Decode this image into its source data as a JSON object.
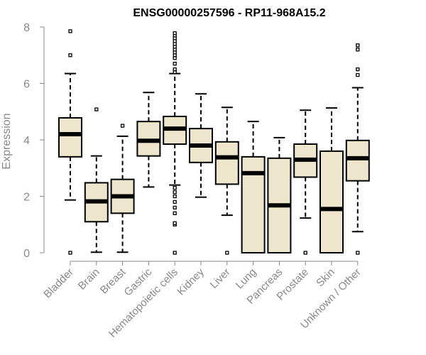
{
  "chart_data": {
    "type": "boxplot",
    "title": "ENSG00000257596 - RP11-968A15.2",
    "xlabel": "",
    "ylabel": "Expression",
    "ylim": [
      0,
      8
    ],
    "yticks": [
      0,
      2,
      4,
      6,
      8
    ],
    "box_fill": "#ede6cd",
    "axis_color": "#888888",
    "categories": [
      "Bladder",
      "Brain",
      "Breast",
      "Gastric",
      "Hematopoietic cells",
      "Kidney",
      "Liver",
      "Lung",
      "Pancreas",
      "Prostate",
      "Skin",
      "Unknown / Other"
    ],
    "boxes": [
      {
        "q1": 3.4,
        "median": 4.2,
        "q3": 4.78,
        "whisker_low": 1.87,
        "whisker_high": 6.35,
        "outliers": [
          0,
          7.0,
          7.85
        ]
      },
      {
        "q1": 1.1,
        "median": 1.82,
        "q3": 2.48,
        "whisker_low": 0.02,
        "whisker_high": 3.43,
        "outliers": [
          5.08
        ]
      },
      {
        "q1": 1.4,
        "median": 2.0,
        "q3": 2.6,
        "whisker_low": 0.02,
        "whisker_high": 4.13,
        "outliers": [
          4.5
        ]
      },
      {
        "q1": 3.43,
        "median": 3.97,
        "q3": 4.65,
        "whisker_low": 2.33,
        "whisker_high": 5.68,
        "outliers": []
      },
      {
        "q1": 3.85,
        "median": 4.4,
        "q3": 4.83,
        "whisker_low": 2.4,
        "whisker_high": 6.35,
        "outliers": [
          0,
          1.0,
          1.05,
          1.4,
          1.6,
          1.8,
          2.0,
          2.15,
          2.3,
          6.4,
          6.5,
          6.7,
          6.9,
          7.0,
          7.1,
          7.2,
          7.3,
          7.4,
          7.5,
          7.6,
          7.7,
          7.78
        ]
      },
      {
        "q1": 3.2,
        "median": 3.8,
        "q3": 4.4,
        "whisker_low": 1.97,
        "whisker_high": 5.63,
        "outliers": []
      },
      {
        "q1": 2.43,
        "median": 3.38,
        "q3": 3.93,
        "whisker_low": 1.33,
        "whisker_high": 5.15,
        "outliers": [
          0
        ]
      },
      {
        "q1": 0,
        "median": 2.82,
        "q3": 3.4,
        "whisker_low": 0,
        "whisker_high": 4.65,
        "outliers": []
      },
      {
        "q1": 0,
        "median": 1.68,
        "q3": 3.35,
        "whisker_low": 0,
        "whisker_high": 4.08,
        "outliers": []
      },
      {
        "q1": 2.68,
        "median": 3.3,
        "q3": 3.85,
        "whisker_low": 1.23,
        "whisker_high": 5.05,
        "outliers": [
          0
        ]
      },
      {
        "q1": 0,
        "median": 1.55,
        "q3": 3.6,
        "whisker_low": 0,
        "whisker_high": 5.13,
        "outliers": []
      },
      {
        "q1": 2.55,
        "median": 3.35,
        "q3": 3.98,
        "whisker_low": 0.75,
        "whisker_high": 5.85,
        "outliers": [
          0,
          6.3,
          6.5,
          7.2,
          7.35
        ]
      }
    ]
  }
}
